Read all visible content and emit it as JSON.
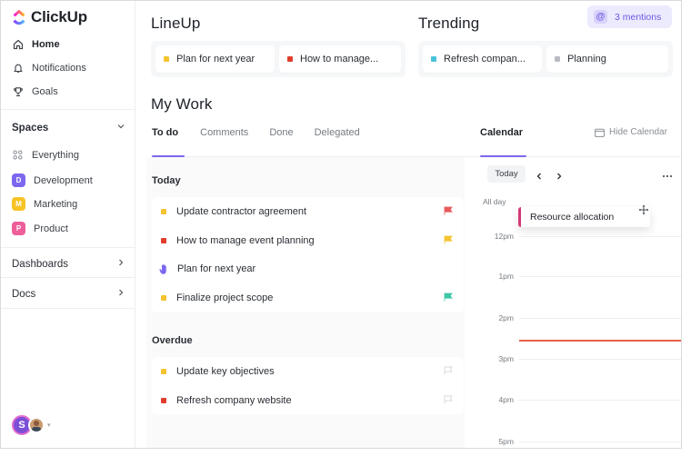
{
  "app": {
    "name": "ClickUp"
  },
  "sidebar": {
    "nav": [
      {
        "label": "Home",
        "icon": "home-icon"
      },
      {
        "label": "Notifications",
        "icon": "bell-icon"
      },
      {
        "label": "Goals",
        "icon": "trophy-icon"
      }
    ],
    "spaces_label": "Spaces",
    "everything_label": "Everything",
    "spaces": [
      {
        "letter": "D",
        "label": "Development",
        "color": "#7b68ee"
      },
      {
        "letter": "M",
        "label": "Marketing",
        "color": "#f7c325"
      },
      {
        "letter": "P",
        "label": "Product",
        "color": "#ee5e99"
      }
    ],
    "dashboards_label": "Dashboards",
    "docs_label": "Docs",
    "avatar_letter": "S"
  },
  "lineup": {
    "title": "LineUp",
    "items": [
      {
        "label": "Plan for next year",
        "color": "#f4c430"
      },
      {
        "label": "How to manage...",
        "color": "#e03e2d"
      }
    ]
  },
  "trending": {
    "title": "Trending",
    "items": [
      {
        "label": "Refresh compan...",
        "color": "#49c2d9"
      },
      {
        "label": "Planning",
        "color": "#b8bcc2"
      }
    ]
  },
  "mentions": {
    "label": "3 mentions"
  },
  "mywork": {
    "title": "My Work",
    "tabs": [
      "To do",
      "Comments",
      "Done",
      "Delegated"
    ],
    "today_label": "Today",
    "today_tasks": [
      {
        "label": "Update contractor agreement",
        "color": "#f4c430",
        "flag": "#e85a5a"
      },
      {
        "label": "How to manage event planning",
        "color": "#e03e2d",
        "flag": "#f4c430"
      },
      {
        "label": "Plan for next year",
        "color": "#7b68ee",
        "flag": ""
      },
      {
        "label": "Finalize project scope",
        "color": "#f4c430",
        "flag": "#3ec6a8"
      }
    ],
    "overdue_label": "Overdue",
    "overdue_tasks": [
      {
        "label": "Update key objectives",
        "color": "#f4c430",
        "flag": "#d5d8dc"
      },
      {
        "label": "Refresh company website",
        "color": "#e03e2d",
        "flag": "#d5d8dc"
      }
    ]
  },
  "calendar": {
    "tab_label": "Calendar",
    "hide_label": "Hide Calendar",
    "today_button": "Today",
    "all_day_label": "All day",
    "event_label": "Resource allocation",
    "hours": [
      "12pm",
      "1pm",
      "2pm",
      "3pm",
      "4pm",
      "5pm"
    ]
  }
}
